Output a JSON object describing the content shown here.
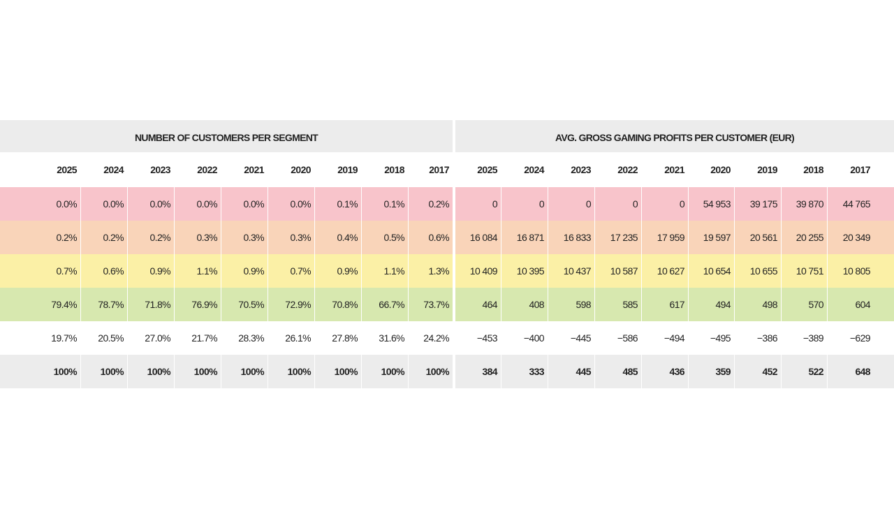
{
  "left": {
    "title": "NUMBER OF CUSTOMERS PER SEGMENT",
    "years": [
      "2025",
      "2024",
      "2023",
      "2022",
      "2021",
      "2020",
      "2019",
      "2018",
      "2017"
    ],
    "rows": [
      [
        "0.0%",
        "0.0%",
        "0.0%",
        "0.0%",
        "0.0%",
        "0.0%",
        "0.1%",
        "0.1%",
        "0.2%"
      ],
      [
        "0.2%",
        "0.2%",
        "0.2%",
        "0.3%",
        "0.3%",
        "0.3%",
        "0.4%",
        "0.5%",
        "0.6%"
      ],
      [
        "0.7%",
        "0.6%",
        "0.9%",
        "1.1%",
        "0.9%",
        "0.7%",
        "0.9%",
        "1.1%",
        "1.3%"
      ],
      [
        "79.4%",
        "78.7%",
        "71.8%",
        "76.9%",
        "70.5%",
        "72.9%",
        "70.8%",
        "66.7%",
        "73.7%"
      ],
      [
        "19.7%",
        "20.5%",
        "27.0%",
        "21.7%",
        "28.3%",
        "26.1%",
        "27.8%",
        "31.6%",
        "24.2%"
      ],
      [
        "100%",
        "100%",
        "100%",
        "100%",
        "100%",
        "100%",
        "100%",
        "100%",
        "100%"
      ]
    ]
  },
  "right": {
    "title": "AVG. GROSS GAMING PROFITS PER CUSTOMER (EUR)",
    "years": [
      "2025",
      "2024",
      "2023",
      "2022",
      "2021",
      "2020",
      "2019",
      "2018",
      "2017"
    ],
    "rows": [
      [
        "0",
        "0",
        "0",
        "0",
        "0",
        "54 953",
        "39 175",
        "39 870",
        "44 765"
      ],
      [
        "16 084",
        "16 871",
        "16 833",
        "17 235",
        "17 959",
        "19 597",
        "20 561",
        "20 255",
        "20 349"
      ],
      [
        "10 409",
        "10 395",
        "10 437",
        "10 587",
        "10 627",
        "10 654",
        "10 655",
        "10 751",
        "10 805"
      ],
      [
        "464",
        "408",
        "598",
        "585",
        "617",
        "494",
        "498",
        "570",
        "604"
      ],
      [
        "−453",
        "−400",
        "−445",
        "−586",
        "−494",
        "−495",
        "−386",
        "−389",
        "−629"
      ],
      [
        "384",
        "333",
        "445",
        "485",
        "436",
        "359",
        "452",
        "522",
        "648"
      ]
    ]
  }
}
